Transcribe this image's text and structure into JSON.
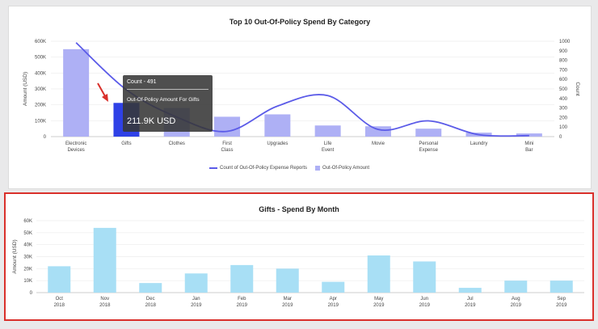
{
  "top_chart": {
    "title": "Top 10 Out-Of-Policy Spend By Category",
    "left_axis_label": "Amount (USD)",
    "right_axis_label": "Count",
    "left_ticks": [
      "0",
      "100K",
      "200K",
      "300K",
      "400K",
      "500K",
      "600K"
    ],
    "right_ticks": [
      "0",
      "100",
      "200",
      "300",
      "400",
      "500",
      "600",
      "700",
      "800",
      "900",
      "1000"
    ],
    "legend": {
      "line_label": "Count of Out-Of-Policy Expense Reports",
      "bar_label": "Out-Of-Policy Amount"
    },
    "tooltip": {
      "count": "Count - 491",
      "label": "Out-Of-Policy Amount For Gifts",
      "value": "211.9K USD"
    },
    "colors": {
      "bar": "#aeb0f5",
      "bar_selected": "#2f41e6",
      "line": "#5b5be8",
      "arrow": "#d9302b"
    }
  },
  "bottom_chart": {
    "title": "Gifts - Spend By Month",
    "left_axis_label": "Amount (USD)",
    "left_ticks": [
      "0",
      "10K",
      "20K",
      "30K",
      "40K",
      "50K",
      "60K"
    ],
    "colors": {
      "bar": "#a8dff5",
      "frame": "#d9302b"
    }
  },
  "chart_data": [
    {
      "type": "bar",
      "title": "Top 10 Out-Of-Policy Spend By Category",
      "categories": [
        [
          "Electronic",
          "Devices"
        ],
        [
          "Gifts"
        ],
        [
          "Clothes"
        ],
        [
          "First",
          "Class"
        ],
        [
          "Upgrades"
        ],
        [
          "Life",
          "Event"
        ],
        [
          "Movie"
        ],
        [
          "Personal",
          "Expense"
        ],
        [
          "Laundry"
        ],
        [
          "Mini",
          "Bar"
        ]
      ],
      "series": [
        {
          "name": "Out-Of-Policy Amount",
          "axis": "left",
          "values": [
            550000,
            212000,
            180000,
            125000,
            140000,
            70000,
            65000,
            50000,
            25000,
            20000
          ]
        },
        {
          "name": "Count of Out-Of-Policy Expense Reports",
          "type": "line",
          "axis": "right",
          "values": [
            985,
            491,
            205,
            55,
            320,
            430,
            75,
            165,
            20,
            10
          ]
        }
      ],
      "selected_index": 1,
      "ylim": [
        0,
        600000
      ],
      "y2lim": [
        0,
        1000
      ],
      "ylabel": "Amount (USD)",
      "y2label": "Count",
      "legend_position": "bottom"
    },
    {
      "type": "bar",
      "title": "Gifts - Spend By Month",
      "categories": [
        [
          "Oct",
          "2018"
        ],
        [
          "Nov",
          "2018"
        ],
        [
          "Dec",
          "2018"
        ],
        [
          "Jan",
          "2019"
        ],
        [
          "Feb",
          "2019"
        ],
        [
          "Mar",
          "2019"
        ],
        [
          "Apr",
          "2019"
        ],
        [
          "May",
          "2019"
        ],
        [
          "Jun",
          "2019"
        ],
        [
          "Jul",
          "2019"
        ],
        [
          "Aug",
          "2019"
        ],
        [
          "Sep",
          "2019"
        ]
      ],
      "values": [
        22000,
        54000,
        8000,
        16000,
        23000,
        20000,
        9000,
        31000,
        26000,
        4000,
        10000,
        10000
      ],
      "ylim": [
        0,
        60000
      ],
      "ylabel": "Amount (USD)"
    }
  ]
}
